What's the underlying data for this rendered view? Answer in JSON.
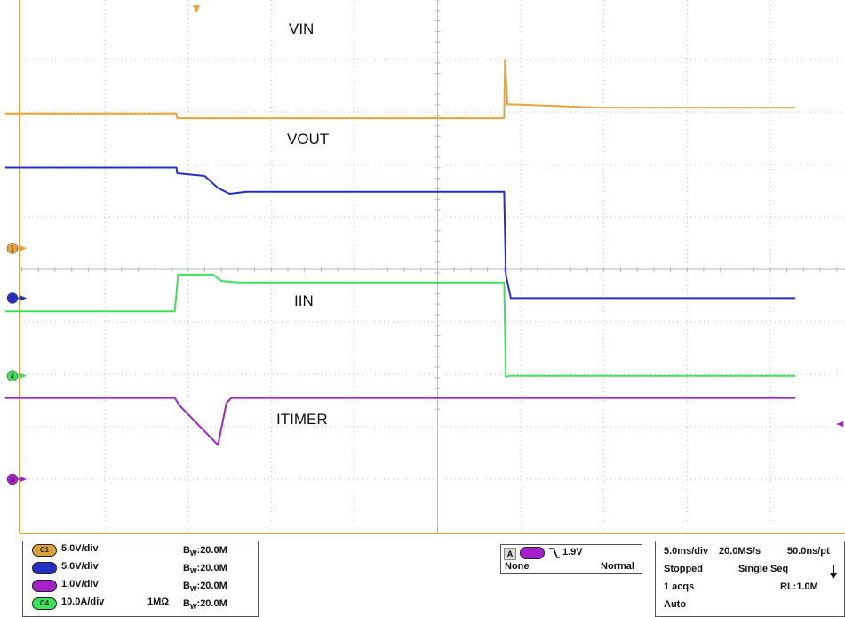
{
  "colors": {
    "grid": "#b9b9b9",
    "ch1": "#eaa23a",
    "ch2": "#2430c4",
    "ch3": "#a321c8",
    "ch4": "#3fe05a",
    "frame": "#e8a235"
  },
  "chart_data": {
    "type": "line",
    "x_unit": "ms",
    "y_unit": "div",
    "xlim": [
      -1.0,
      46.5
    ],
    "ylim": [
      -4.0,
      4.0
    ],
    "grid": "on",
    "series": [
      {
        "name": "VIN",
        "channel": "1",
        "color": "#eaa23a",
        "x": [
          -1.0,
          9.3,
          9.35,
          29.0,
          29.05,
          29.2,
          35.0,
          46.5
        ],
        "y": [
          2.97,
          2.97,
          2.88,
          2.88,
          4.0,
          3.15,
          3.08,
          3.08
        ]
      },
      {
        "name": "VOUT",
        "channel": "2",
        "color": "#2430c4",
        "x": [
          -1.0,
          9.3,
          9.35,
          11.0,
          11.8,
          12.5,
          13.5,
          29.0,
          29.1,
          29.4,
          46.5
        ],
        "y": [
          1.94,
          1.94,
          1.83,
          1.78,
          1.55,
          1.44,
          1.48,
          1.48,
          -0.1,
          -0.55,
          -0.55
        ]
      },
      {
        "name": "IIN",
        "channel": "4",
        "color": "#3fe05a",
        "x": [
          -1.0,
          9.2,
          9.4,
          11.5,
          12.0,
          13.0,
          29.0,
          29.1,
          29.3,
          46.5
        ],
        "y": [
          -0.8,
          -0.8,
          -0.1,
          -0.1,
          -0.22,
          -0.25,
          -0.25,
          -2.05,
          -2.03,
          -2.03
        ],
        "series_note": ""
      },
      {
        "name": "ITIMER",
        "channel": "3",
        "color": "#a321c8",
        "x": [
          -1.0,
          9.2,
          9.5,
          11.8,
          12.3,
          12.6,
          46.5
        ],
        "y": [
          -2.45,
          -2.45,
          -2.6,
          -3.35,
          -2.55,
          -2.45,
          -2.45
        ]
      }
    ],
    "labels": [
      "VIN",
      "VOUT",
      "IIN",
      "ITIMER"
    ]
  },
  "channel_markers": [
    {
      "id": "1",
      "label": "1",
      "level": 0.4,
      "color": "#eaa23a"
    },
    {
      "id": "2",
      "label": "2",
      "level": -0.55,
      "color": "#2430c4"
    },
    {
      "id": "4",
      "label": "4",
      "level": -2.03,
      "color": "#3fe05a"
    },
    {
      "id": "3",
      "label": "3",
      "level": -4.0,
      "color": "#a321c8"
    }
  ],
  "trigger_level_marker": {
    "level": -2.95,
    "color": "#a321c8"
  },
  "trigger_position_marker": {
    "time": 10.5,
    "color": "#eaa23a"
  },
  "channels": [
    {
      "badge": "C1",
      "scale": "5.0V/div",
      "impedance": "",
      "bw": "20.0M",
      "color": "#d9a13c"
    },
    {
      "badge": "C2",
      "scale": "5.0V/div",
      "impedance": "",
      "bw": "20.0M",
      "color": "#2430c4"
    },
    {
      "badge": "C3",
      "scale": "1.0V/div",
      "impedance": "",
      "bw": "20.0M",
      "color": "#a321c8"
    },
    {
      "badge": "C4",
      "scale": "10.0A/div",
      "impedance": "1MΩ",
      "bw": "20.0M",
      "color": "#3fe05a"
    }
  ],
  "bw_prefix": "B",
  "bw_sub": "W",
  "bw_sep": ":",
  "trigger": {
    "mode_letter": "A",
    "source_badge": "C3",
    "slope_icon": "falling-edge-icon",
    "level": "1.9V",
    "coupling": "None",
    "type": "Normal"
  },
  "acquisition": {
    "timebase": "5.0ms/div",
    "sample_rate": "20.0MS/s",
    "resolution": "50.0ns/pt",
    "state": "Stopped",
    "mode": "Single Seq",
    "acqs": "1 acqs",
    "record_length": "RL:1.0M",
    "trigger_mode": "Auto",
    "arrow_icon": "down-arrow-icon"
  }
}
